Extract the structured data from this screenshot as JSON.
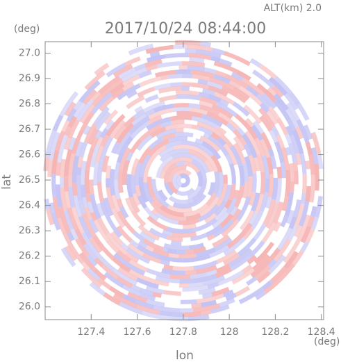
{
  "chart_data": {
    "type": "radar-ppi",
    "title": "2017/10/24 08:44:00",
    "subtitle": "ALT(km) 2.0",
    "x_label": "lon",
    "y_label": "lat",
    "x_unit": "(deg)",
    "y_unit": "(deg)",
    "xlim": [
      127.2,
      128.41
    ],
    "ylim": [
      25.95,
      27.045
    ],
    "xticks": [
      127.4,
      127.6,
      127.8,
      128.0,
      128.2,
      128.4
    ],
    "yticks": [
      {
        "value": 26,
        "label": "26.0"
      },
      26.1,
      26.2,
      26.3,
      26.4,
      26.5,
      26.6,
      26.7,
      26.8,
      26.9,
      {
        "value": 27,
        "label": "27.0"
      }
    ],
    "colors": [
      "#f6b5b5",
      "#c3c3f5",
      "#ffffff"
    ]
  }
}
